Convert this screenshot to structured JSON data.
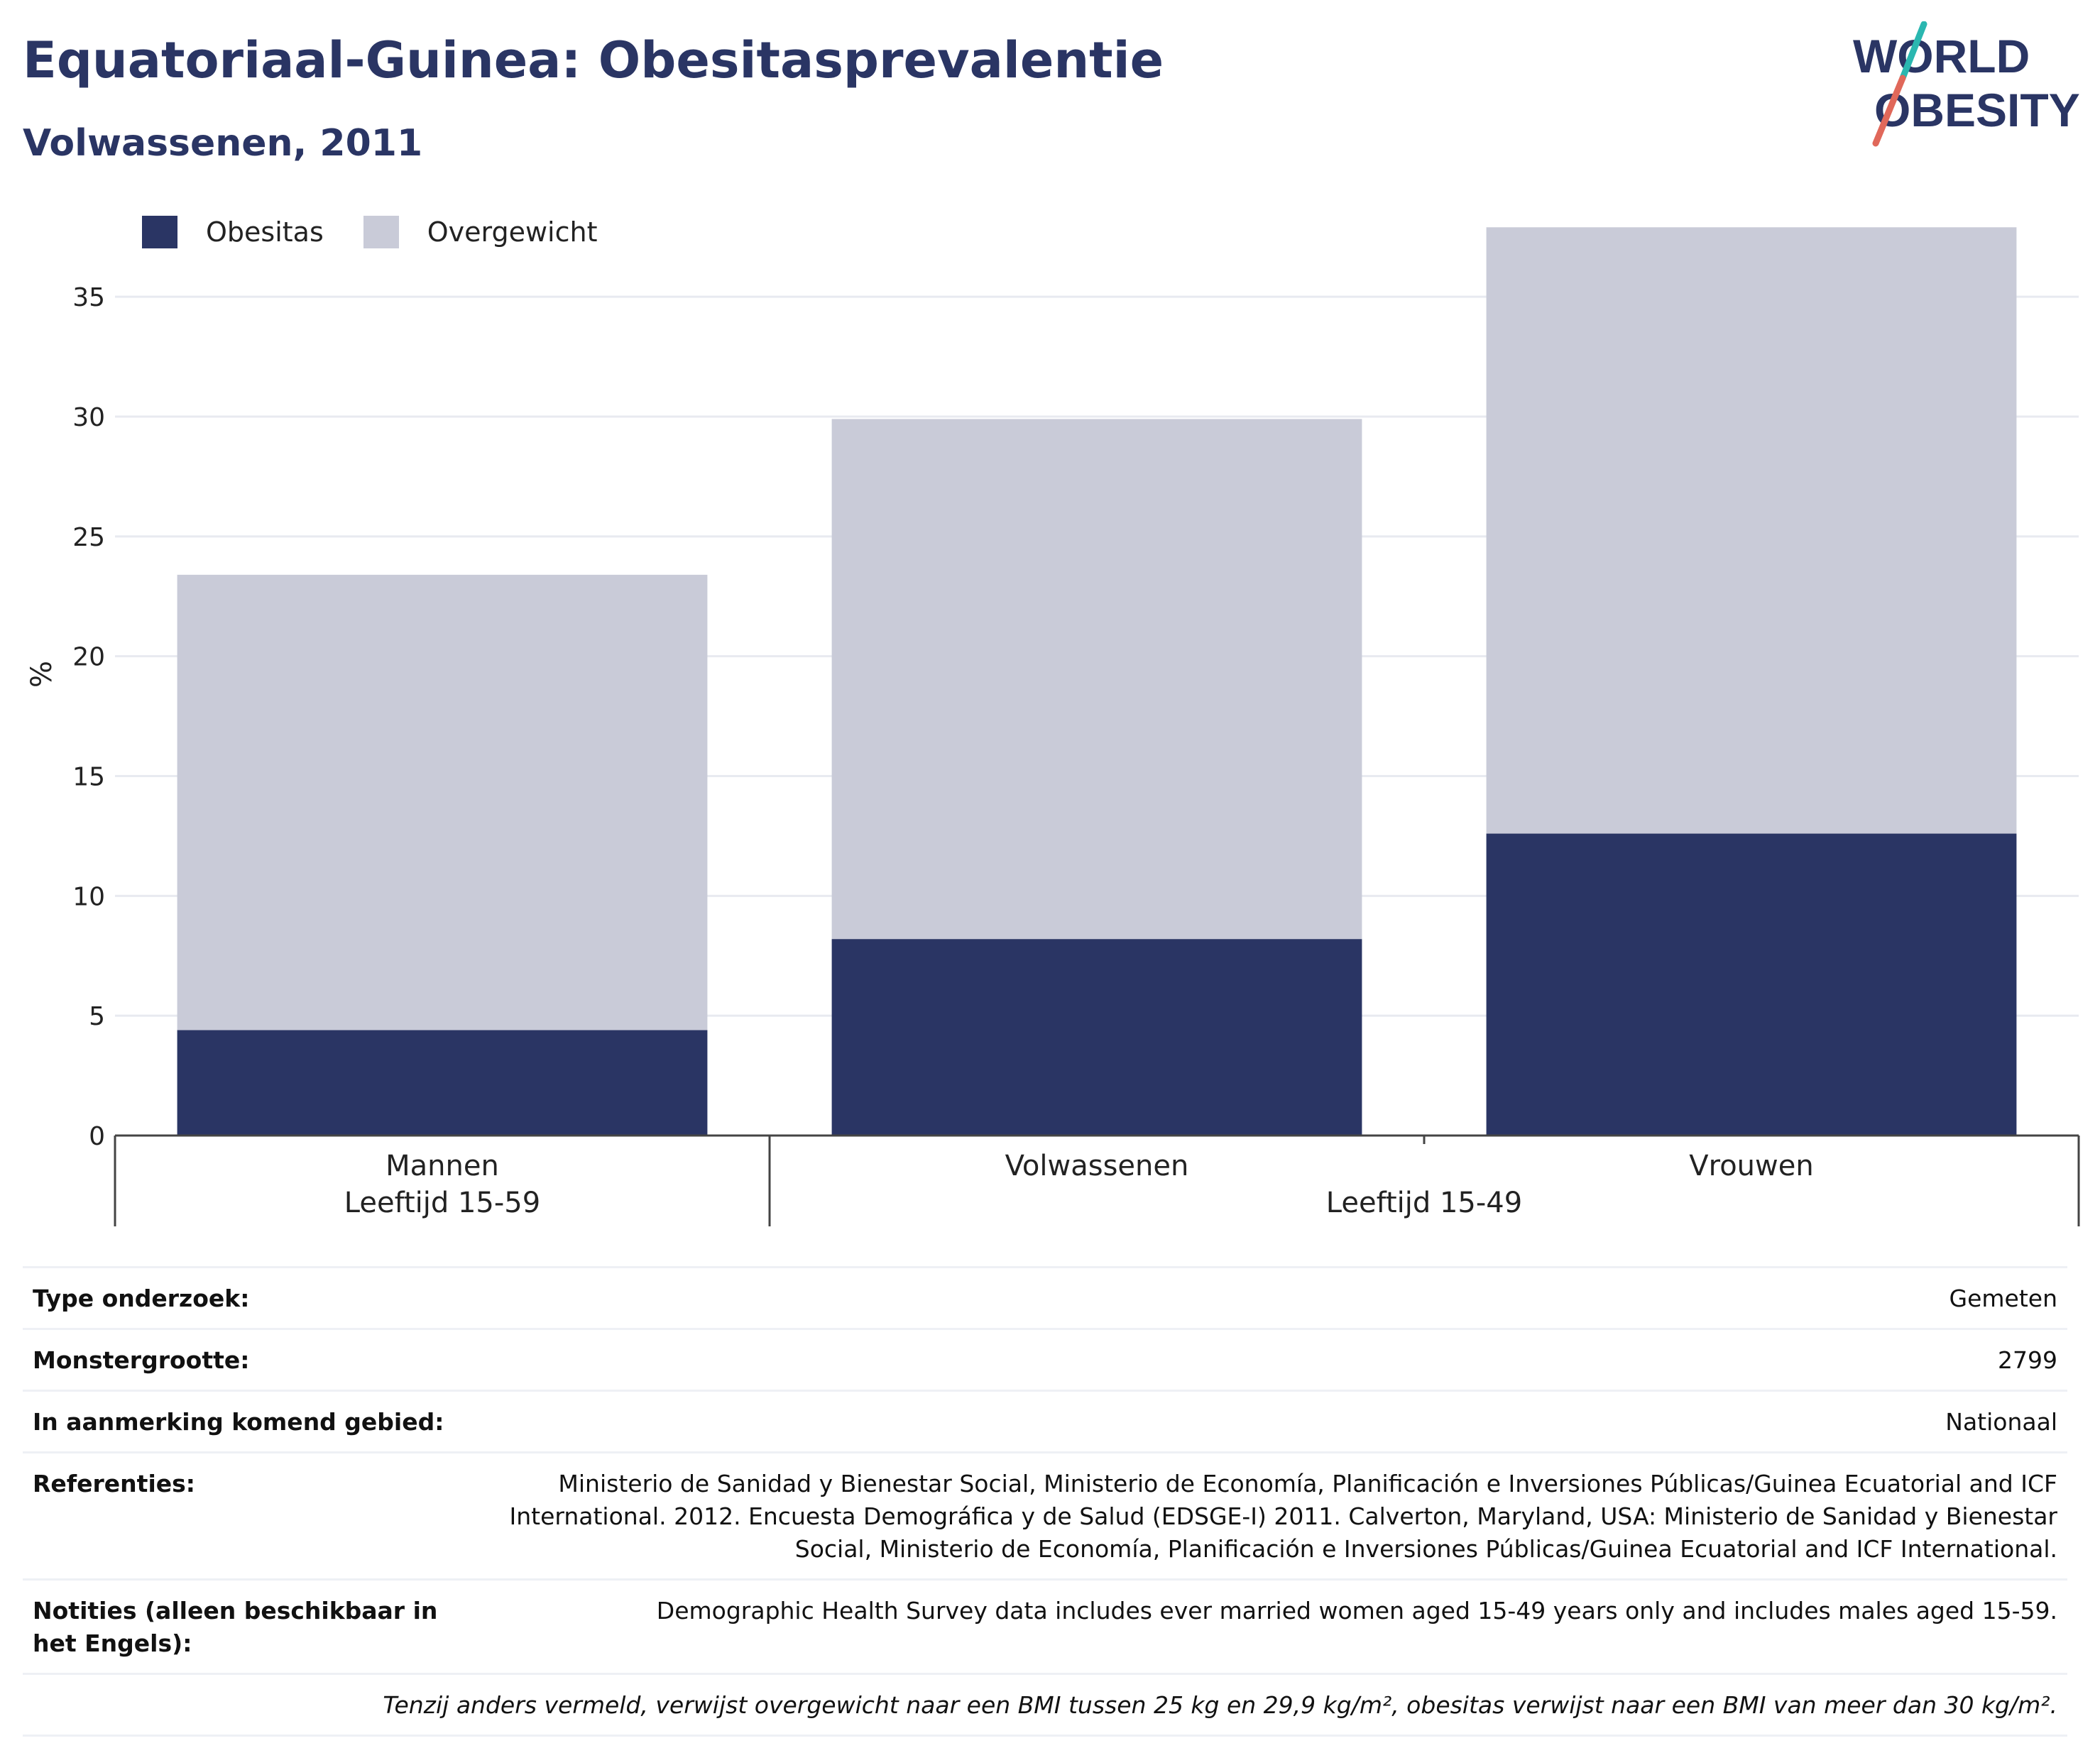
{
  "title": "Equatoriaal-Guinea: Obesitasprevalentie",
  "subtitle": "Volwassenen, 2011",
  "logo": {
    "line1": "WORLD",
    "line2": "OBESITY"
  },
  "colors": {
    "obesity": "#2a3564",
    "overweight": "#c9cbd8",
    "accent_teal": "#2ab7b0",
    "accent_red": "#e0685a",
    "grid": "#e8eaf0"
  },
  "chart_data": {
    "type": "bar",
    "stacked": true,
    "categories": [
      "Mannen",
      "Volwassenen",
      "Vrouwen"
    ],
    "category_groups": [
      {
        "label": "Leeftijd 15-59",
        "categories": [
          "Mannen"
        ]
      },
      {
        "label": "Leeftijd 15-49",
        "categories": [
          "Volwassenen",
          "Vrouwen"
        ]
      }
    ],
    "series": [
      {
        "name": "Obesitas",
        "values": [
          4.4,
          8.2,
          12.6
        ]
      },
      {
        "name": "Overgewicht",
        "values": [
          19.0,
          21.7,
          25.3
        ]
      }
    ],
    "ylabel": "%",
    "xlabel": "",
    "ylim": [
      0,
      38.5
    ],
    "yticks": [
      0,
      5,
      10,
      15,
      20,
      25,
      30,
      35
    ],
    "grid": true,
    "legend_position": "top-left"
  },
  "info": [
    {
      "label": "Type onderzoek:",
      "value": "Gemeten"
    },
    {
      "label": "Monstergrootte:",
      "value": "2799"
    },
    {
      "label": "In aanmerking komend gebied:",
      "value": "Nationaal"
    },
    {
      "label": "Referenties:",
      "value": "Ministerio de Sanidad y Bienestar Social, Ministerio de Economía, Planificación e Inversiones Públicas/Guinea Ecuatorial and ICF International. 2012. Encuesta Demográfica y de Salud (EDSGE-I) 2011. Calverton, Maryland, USA: Ministerio de Sanidad y Bienestar Social, Ministerio de Economía, Planificación e Inversiones Públicas/Guinea Ecuatorial and ICF International."
    },
    {
      "label": "Notities (alleen beschikbaar in het Engels):",
      "value": "Demographic Health Survey data includes ever married women aged 15-49 years only and includes males aged 15-59."
    }
  ],
  "footnote": "Tenzij anders vermeld, verwijst overgewicht naar een BMI tussen 25 kg en 29,9 kg/m², obesitas verwijst naar een BMI van meer dan 30 kg/m²."
}
